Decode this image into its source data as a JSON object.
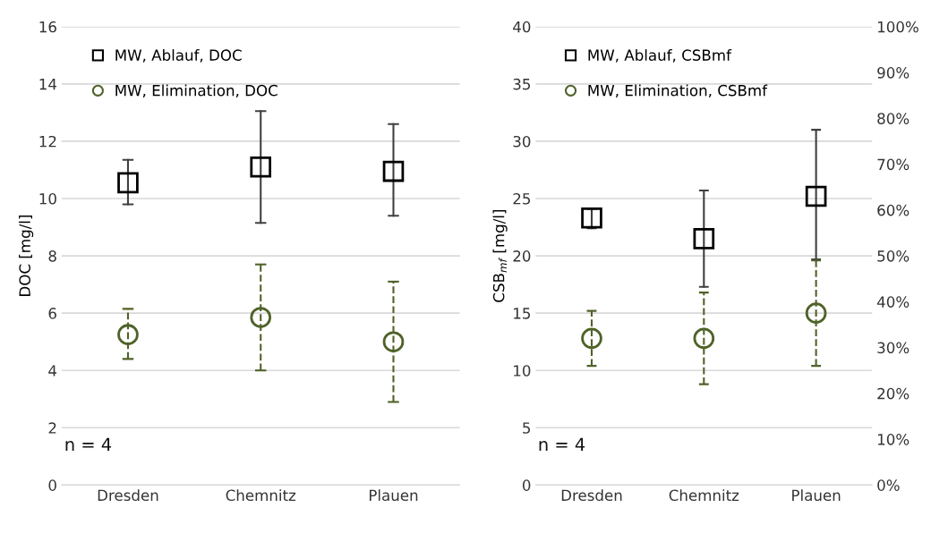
{
  "chart_data": [
    {
      "type": "scatter",
      "categories": [
        "Dresden",
        "Chemnitz",
        "Plauen"
      ],
      "ylabel": "DOC [mg/l]",
      "ylim": [
        0,
        16
      ],
      "yticks": [
        0,
        2,
        4,
        6,
        8,
        10,
        12,
        14,
        16
      ],
      "grid": "y",
      "legend": "top left",
      "annotations": [
        "n = 4"
      ],
      "series": [
        {
          "name": "MW, Ablauf, DOC",
          "color": "#000000",
          "marker": "square",
          "line_style": "solid",
          "values": [
            10.55,
            11.1,
            10.95
          ],
          "errors": [
            [
              9.8,
              11.35
            ],
            [
              9.15,
              13.05
            ],
            [
              9.4,
              12.6
            ]
          ]
        },
        {
          "name": "MW, Elimination, DOC",
          "color": "#4f6228",
          "marker": "circle",
          "line_style": "dashed",
          "values": [
            5.25,
            5.85,
            5.0
          ],
          "errors": [
            [
              4.4,
              6.15
            ],
            [
              4.0,
              7.7
            ],
            [
              2.9,
              7.1
            ]
          ]
        }
      ]
    },
    {
      "type": "scatter",
      "categories": [
        "Dresden",
        "Chemnitz",
        "Plauen"
      ],
      "ylabel": "CSB$_{mf}$ [mg/l]",
      "ylim": [
        0,
        40
      ],
      "yticks": [
        0,
        5,
        10,
        15,
        20,
        25,
        30,
        35,
        40
      ],
      "y2lim": [
        0,
        100
      ],
      "y2ticks": [
        {
          "value": 0,
          "label": "0%"
        },
        {
          "value": 10,
          "label": "10%"
        },
        {
          "value": 20,
          "label": "20%"
        },
        {
          "value": 30,
          "label": "30%"
        },
        {
          "value": 40,
          "label": "40%"
        },
        {
          "value": 50,
          "label": "50%"
        },
        {
          "value": 60,
          "label": "60%"
        },
        {
          "value": 70,
          "label": "70%"
        },
        {
          "value": 80,
          "label": "80%"
        },
        {
          "value": 90,
          "label": "90%"
        },
        {
          "value": 100,
          "label": "100%"
        }
      ],
      "grid": "y",
      "legend": "top left",
      "annotations": [
        "n = 4"
      ],
      "series": [
        {
          "name": "MW, Ablauf, CSBmf",
          "color": "#000000",
          "marker": "square",
          "line_style": "solid",
          "values": [
            23.3,
            21.5,
            25.2
          ],
          "errors": [
            [
              22.4,
              24.1
            ],
            [
              17.3,
              25.7
            ],
            [
              19.7,
              31.0
            ]
          ]
        },
        {
          "name": "MW, Elimination, CSBmf",
          "color": "#4f6228",
          "marker": "circle",
          "line_style": "dashed",
          "axis": "y2",
          "values": [
            32,
            32,
            37.5
          ],
          "errors": [
            [
              26,
              38
            ],
            [
              22,
              42
            ],
            [
              26,
              49
            ]
          ]
        }
      ]
    }
  ]
}
